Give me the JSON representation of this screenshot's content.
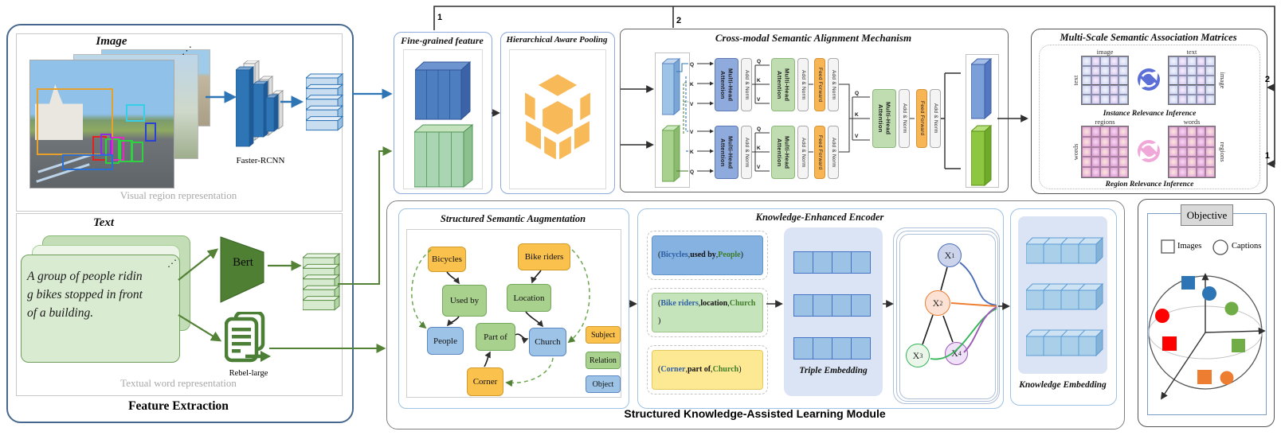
{
  "connector_labels": {
    "top_one": "1",
    "top_two": "2",
    "right_two": "2",
    "right_one": "1"
  },
  "feature_extraction": {
    "title": "Feature Extraction",
    "image_section": {
      "title": "Image",
      "model_label": "Faster-RCNN",
      "caption": "Visual region representation",
      "dots": "⋰"
    },
    "text_section": {
      "title": "Text",
      "sample_lines": [
        "A group of people ridin",
        "g bikes stopped in front",
        " of a building."
      ],
      "encoder_label": "Bert",
      "extractor_label": "Rebel-large",
      "caption": "Textual word representation",
      "dots": "⋰"
    }
  },
  "fine_grained": {
    "title": "Fine-grained feature"
  },
  "pooling": {
    "title": "Hierarchical Aware Pooling"
  },
  "cross_modal": {
    "title": "Cross-modal Semantic Alignment Mechanism",
    "mha_label": "Multi-Head Attention",
    "add_norm_label": "Add & Norm",
    "ff_label": "Feed Forward",
    "q": "Q",
    "k": "K",
    "v": "V"
  },
  "matrices": {
    "title": "Multi-Scale Semantic Association Matrices",
    "instance": {
      "left_top": "image",
      "left_side": "text",
      "right_top": "text",
      "right_side": "image",
      "caption": "Instance Relevance Inference"
    },
    "region": {
      "left_top": "regions",
      "left_side": "words",
      "right_top": "words",
      "right_side": "regions",
      "caption": "Region Relevance Inference"
    }
  },
  "skal": {
    "title": "Structured Knowledge-Assisted Learning Module",
    "ssa": {
      "title": "Structured Semantic Augmentation",
      "nodes": {
        "bicycles": "Bicycles",
        "bike_riders": "Bike riders",
        "used_by": "Used by",
        "location": "Location",
        "people": "People",
        "part_of": "Part of",
        "church": "Church",
        "corner": "Corner"
      },
      "legend": {
        "subject": "Subject",
        "relation": "Relation",
        "object": "Object"
      }
    },
    "kee": {
      "title": "Knowledge-Enhanced Encoder",
      "triples": [
        {
          "style": "blue",
          "parts": [
            {
              "t": "(",
              "c": "plain"
            },
            {
              "t": "Bicycles",
              "c": "subject"
            },
            {
              "t": ", ",
              "c": "plain"
            },
            {
              "t": "used by",
              "c": "plain-bold"
            },
            {
              "t": ",  ",
              "c": "plain"
            },
            {
              "t": "People",
              "c": "object"
            },
            {
              "t": ")",
              "c": "plain"
            }
          ]
        },
        {
          "style": "green",
          "parts": [
            {
              "t": "(",
              "c": "plain"
            },
            {
              "t": "Bike riders",
              "c": "subject"
            },
            {
              "t": ", ",
              "c": "plain"
            },
            {
              "t": "location",
              "c": "plain-bold"
            },
            {
              "t": ", ",
              "c": "plain"
            },
            {
              "t": "Church",
              "c": "object"
            },
            {
              "t": ")",
              "c": "plain"
            }
          ]
        },
        {
          "style": "yellow",
          "parts": [
            {
              "t": "(",
              "c": "plain"
            },
            {
              "t": "Corner",
              "c": "subject"
            },
            {
              "t": ", ",
              "c": "plain"
            },
            {
              "t": "part of",
              "c": "plain-bold"
            },
            {
              "t": ", ",
              "c": "plain"
            },
            {
              "t": "Church",
              "c": "object"
            },
            {
              "t": ")",
              "c": "plain"
            }
          ]
        }
      ],
      "triple_embedding_label": "Triple Embedding",
      "graph_nodes": [
        {
          "base": "X",
          "sub": "1"
        },
        {
          "base": "X",
          "sub": "2"
        },
        {
          "base": "X",
          "sub": "3"
        },
        {
          "base": "X",
          "sub": "4"
        }
      ]
    },
    "knowledge_embedding_label": "Knowledge Embedding"
  },
  "objective": {
    "title": "Objective",
    "legend": {
      "images": "Images",
      "captions": "Captions"
    }
  },
  "colors": {
    "visual_accent": "#2e75b6",
    "textual_accent": "#538135",
    "attention_blue": "#8faadc",
    "attention_green": "#c0ddb2",
    "feed_forward_orange": "#f8b555",
    "subject_orange": "#fac14d",
    "relation_green": "#a9d18e",
    "object_blue": "#9dc3e6",
    "instance_sync": "#5b6fd6",
    "region_sync": "#f0a8d8",
    "pooling_orange": "#f8b959"
  }
}
